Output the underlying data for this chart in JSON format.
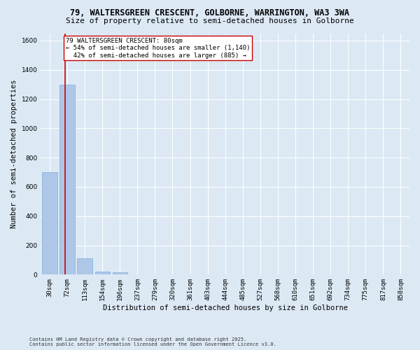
{
  "title_line1": "79, WALTERSGREEN CRESCENT, GOLBORNE, WARRINGTON, WA3 3WA",
  "title_line2": "Size of property relative to semi-detached houses in Golborne",
  "xlabel": "Distribution of semi-detached houses by size in Golborne",
  "ylabel": "Number of semi-detached properties",
  "categories": [
    "30sqm",
    "72sqm",
    "113sqm",
    "154sqm",
    "196sqm",
    "237sqm",
    "279sqm",
    "320sqm",
    "361sqm",
    "403sqm",
    "444sqm",
    "485sqm",
    "527sqm",
    "568sqm",
    "610sqm",
    "651sqm",
    "692sqm",
    "734sqm",
    "775sqm",
    "817sqm",
    "858sqm"
  ],
  "values": [
    700,
    1300,
    110,
    20,
    15,
    0,
    0,
    0,
    0,
    0,
    0,
    0,
    0,
    0,
    0,
    0,
    0,
    0,
    0,
    0,
    0
  ],
  "bar_color": "#aec6e8",
  "bar_edge_color": "#7aafd4",
  "highlight_color": "#cc0000",
  "annotation_text": "79 WALTERSGREEN CRESCENT: 80sqm\n← 54% of semi-detached houses are smaller (1,140)\n  42% of semi-detached houses are larger (885) →",
  "annotation_box_color": "#ffffff",
  "annotation_box_edge": "#cc0000",
  "ylim": [
    0,
    1650
  ],
  "yticks": [
    0,
    200,
    400,
    600,
    800,
    1000,
    1200,
    1400,
    1600
  ],
  "background_color": "#dce9f5",
  "plot_bg_color": "#dce9f5",
  "grid_color": "#ffffff",
  "footer_line1": "Contains HM Land Registry data © Crown copyright and database right 2025.",
  "footer_line2": "Contains public sector information licensed under the Open Government Licence v3.0.",
  "title_fontsize": 8.5,
  "subtitle_fontsize": 8,
  "tick_fontsize": 6.5,
  "ylabel_fontsize": 7.5,
  "xlabel_fontsize": 7.5,
  "annotation_fontsize": 6.5,
  "footer_fontsize": 5
}
